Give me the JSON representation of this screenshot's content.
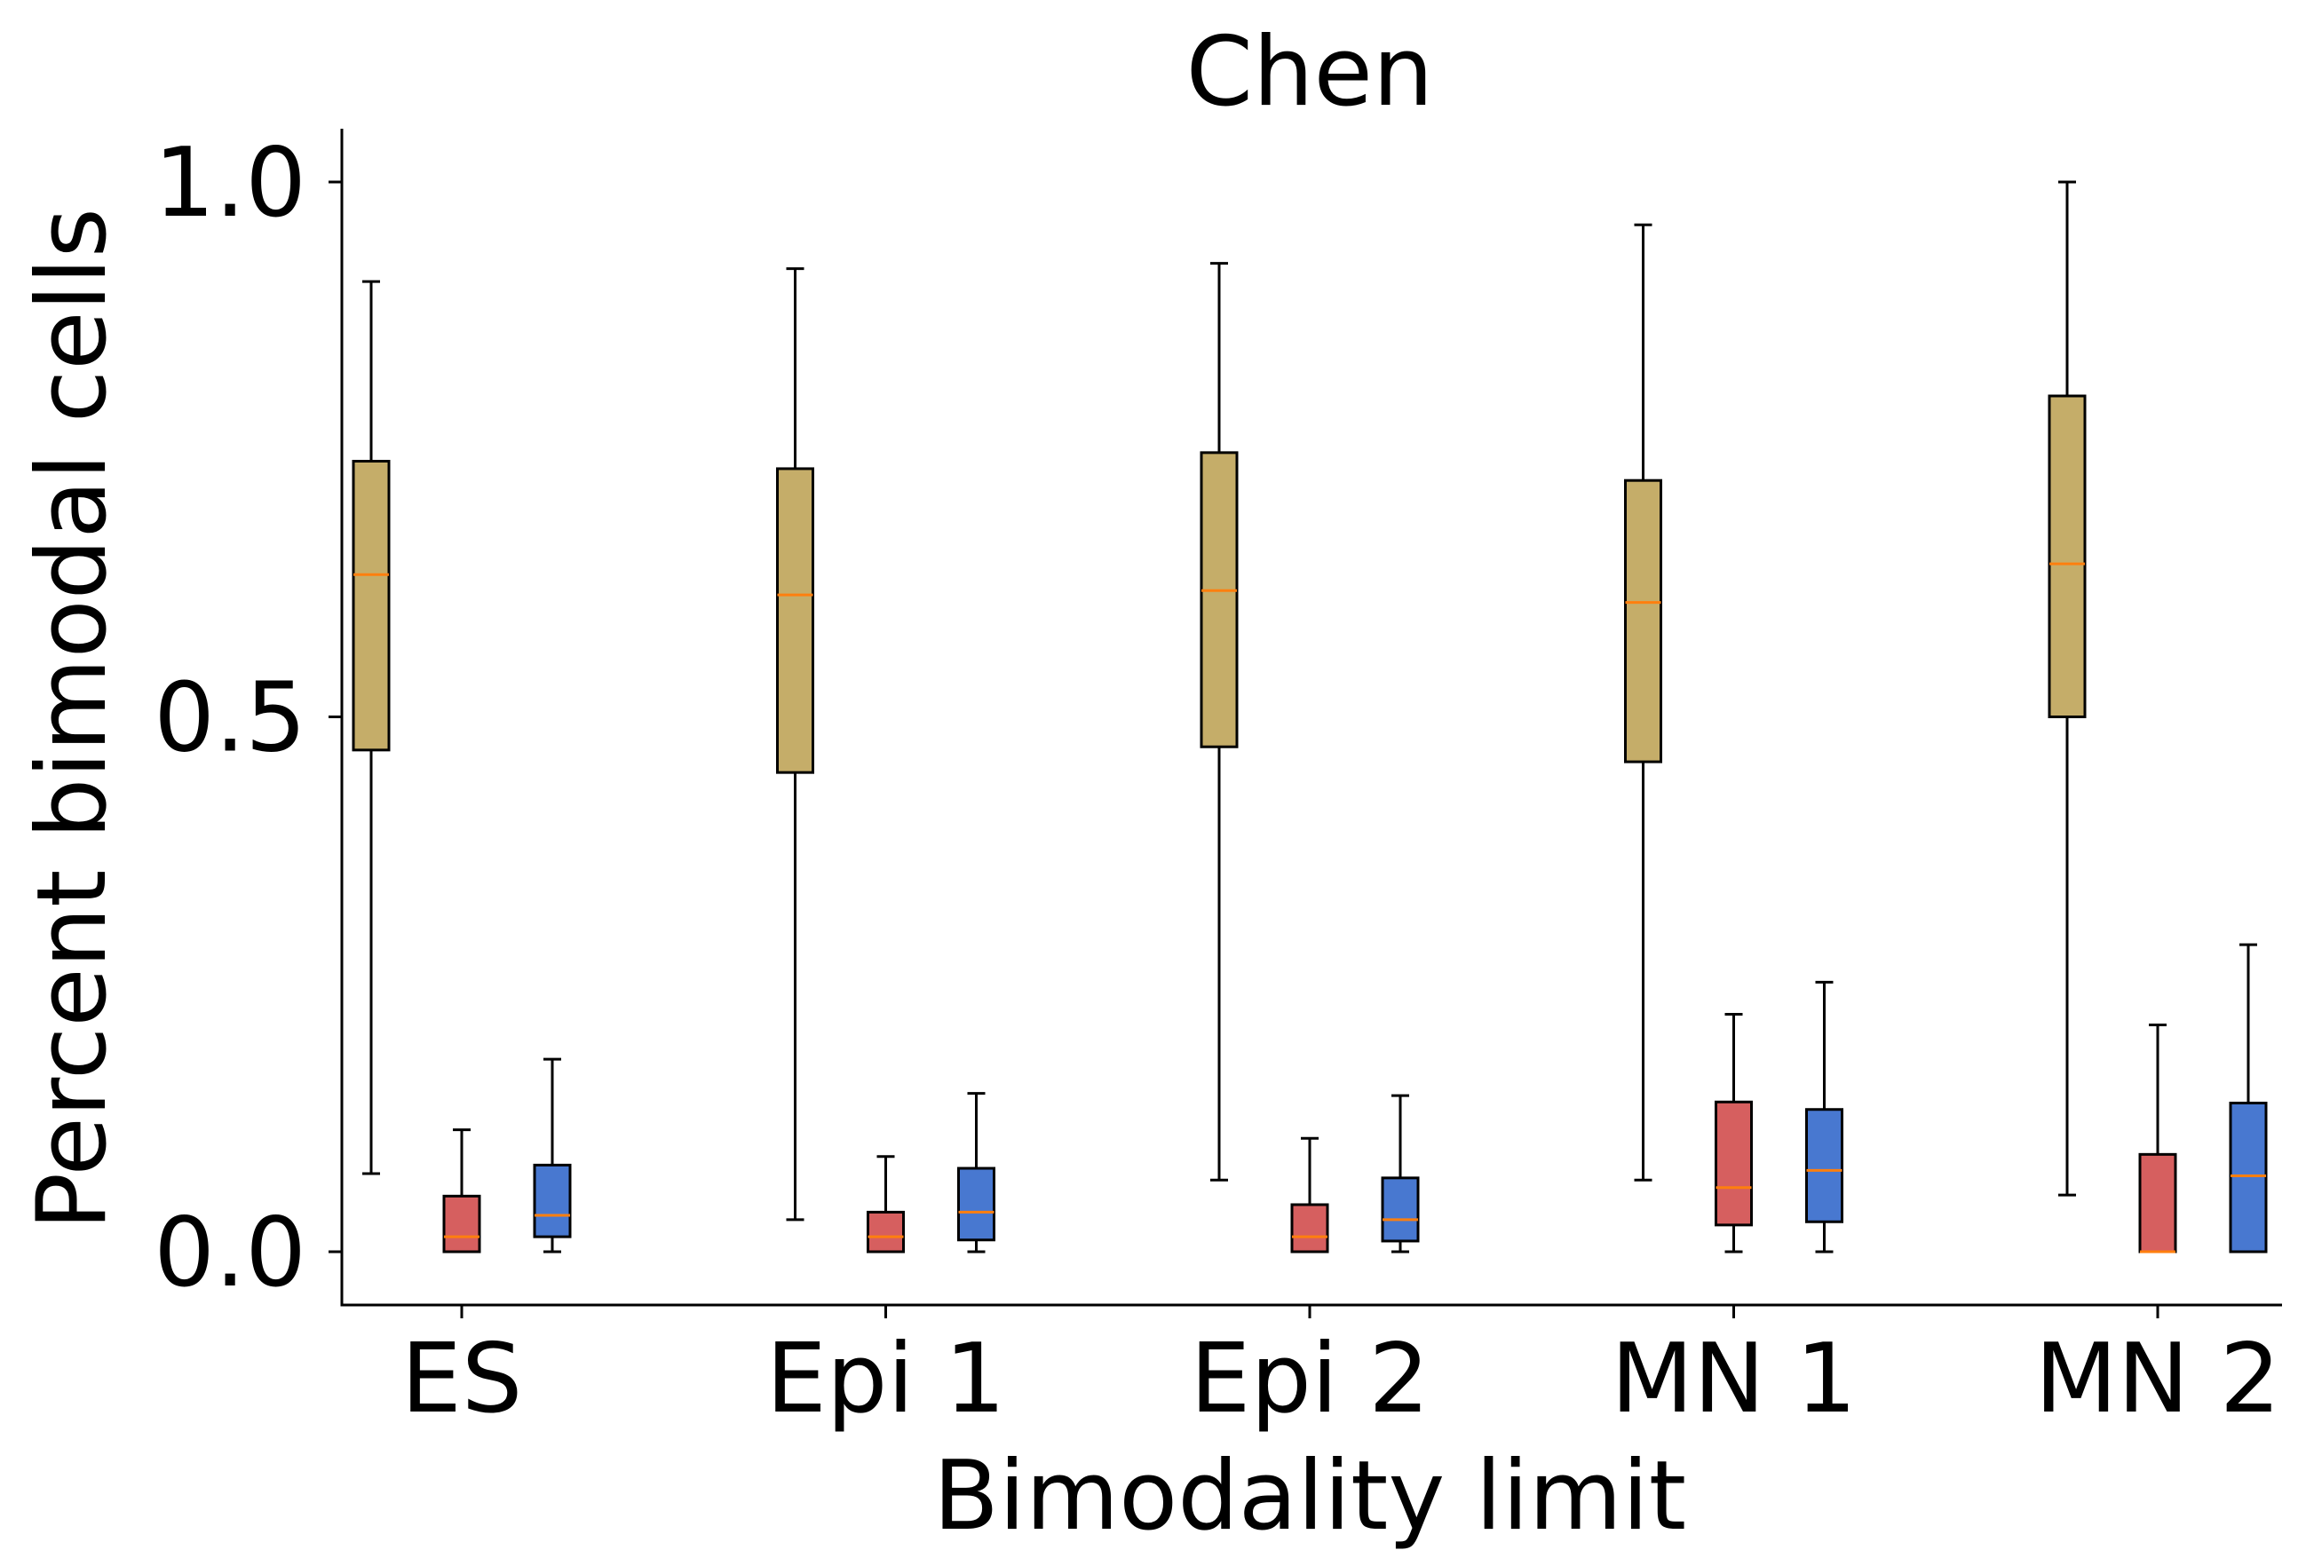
{
  "chart_data": {
    "type": "box",
    "title": "Chen",
    "xlabel": "Bimodality limit",
    "ylabel": "Percent bimodal cells",
    "categories": [
      "ES",
      "Epi 1",
      "Epi 2",
      "MN 1",
      "MN 2"
    ],
    "ylim": [
      -0.05,
      1.05
    ],
    "yticks": [
      "0.0",
      "0.5",
      "1.0"
    ],
    "ytick_values": [
      0.0,
      0.5,
      1.0
    ],
    "grid": false,
    "median_color": "#ff7f0e",
    "series": [
      {
        "color": "#c5ad69",
        "boxes": [
          {
            "whislo": 0.073,
            "q1": 0.469,
            "med": 0.633,
            "q3": 0.739,
            "whishi": 0.907
          },
          {
            "whislo": 0.03,
            "q1": 0.448,
            "med": 0.614,
            "q3": 0.732,
            "whishi": 0.919
          },
          {
            "whislo": 0.067,
            "q1": 0.472,
            "med": 0.618,
            "q3": 0.747,
            "whishi": 0.924
          },
          {
            "whislo": 0.067,
            "q1": 0.458,
            "med": 0.607,
            "q3": 0.721,
            "whishi": 0.96
          },
          {
            "whislo": 0.053,
            "q1": 0.5,
            "med": 0.643,
            "q3": 0.8,
            "whishi": 1.0
          }
        ]
      },
      {
        "color": "#d65f5f",
        "boxes": [
          {
            "whislo": 0.0,
            "q1": 0.0,
            "med": 0.014,
            "q3": 0.052,
            "whishi": 0.114
          },
          {
            "whislo": 0.0,
            "q1": 0.0,
            "med": 0.014,
            "q3": 0.037,
            "whishi": 0.089
          },
          {
            "whislo": 0.0,
            "q1": 0.0,
            "med": 0.014,
            "q3": 0.044,
            "whishi": 0.106
          },
          {
            "whislo": 0.0,
            "q1": 0.025,
            "med": 0.06,
            "q3": 0.14,
            "whishi": 0.222
          },
          {
            "whislo": 0.0,
            "q1": 0.0,
            "med": 0.0,
            "q3": 0.091,
            "whishi": 0.212
          }
        ]
      },
      {
        "color": "#4878d0",
        "boxes": [
          {
            "whislo": 0.0,
            "q1": 0.014,
            "med": 0.034,
            "q3": 0.081,
            "whishi": 0.18
          },
          {
            "whislo": 0.0,
            "q1": 0.011,
            "med": 0.037,
            "q3": 0.078,
            "whishi": 0.148
          },
          {
            "whislo": 0.0,
            "q1": 0.01,
            "med": 0.03,
            "q3": 0.069,
            "whishi": 0.146
          },
          {
            "whislo": 0.0,
            "q1": 0.028,
            "med": 0.076,
            "q3": 0.133,
            "whishi": 0.252
          },
          {
            "whislo": 0.0,
            "q1": 0.0,
            "med": 0.071,
            "q3": 0.139,
            "whishi": 0.287
          }
        ]
      }
    ]
  }
}
